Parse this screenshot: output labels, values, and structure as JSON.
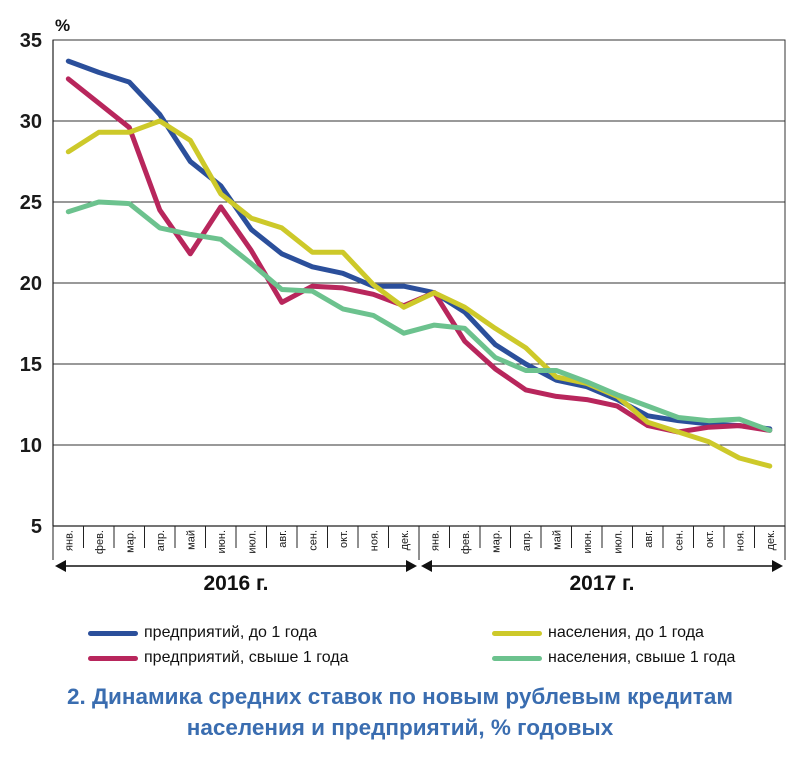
{
  "chart_data": {
    "type": "line",
    "unit_label": "%",
    "ylim": [
      5,
      35
    ],
    "yticks": [
      5,
      10,
      15,
      20,
      25,
      30,
      35
    ],
    "grid": true,
    "categories": [
      "янв.",
      "фев.",
      "мар.",
      "апр.",
      "май",
      "июн.",
      "июл.",
      "авг.",
      "сен.",
      "окт.",
      "ноя.",
      "дек.",
      "янв.",
      "фев.",
      "мар.",
      "апр.",
      "май",
      "июн.",
      "июл.",
      "авг.",
      "сен.",
      "окт.",
      "ноя.",
      "дек."
    ],
    "year_groups": [
      {
        "label": "2016 г.",
        "from": 0,
        "to": 11
      },
      {
        "label": "2017 г.",
        "from": 12,
        "to": 23
      }
    ],
    "series": [
      {
        "name": "предприятий, до 1 года",
        "color": "#2b4f9b",
        "values": [
          33.7,
          33.0,
          32.4,
          30.4,
          27.5,
          26.0,
          23.3,
          21.8,
          21.0,
          20.6,
          19.8,
          19.8,
          19.4,
          18.2,
          16.2,
          15.0,
          14.0,
          13.6,
          12.8,
          11.8,
          11.5,
          11.3,
          11.2,
          11.0
        ]
      },
      {
        "name": "предприятий, свыше 1 года",
        "color": "#b8265c",
        "values": [
          32.6,
          31.1,
          29.6,
          24.5,
          21.8,
          24.7,
          22.0,
          18.8,
          19.8,
          19.7,
          19.3,
          18.6,
          19.4,
          16.4,
          14.7,
          13.4,
          13.0,
          12.8,
          12.4,
          11.2,
          10.8,
          11.1,
          11.2,
          10.9
        ]
      },
      {
        "name": "населения, до 1 года",
        "color": "#cdc92a",
        "values": [
          28.1,
          29.3,
          29.3,
          30.0,
          28.8,
          25.5,
          24.0,
          23.4,
          21.9,
          21.9,
          19.9,
          18.5,
          19.4,
          18.5,
          17.2,
          16.0,
          14.2,
          13.8,
          13.0,
          11.4,
          10.8,
          10.2,
          9.2,
          8.7
        ]
      },
      {
        "name": "населения, свыше 1 года",
        "color": "#6cc28e",
        "values": [
          24.4,
          25.0,
          24.9,
          23.4,
          23.0,
          22.7,
          21.2,
          19.6,
          19.5,
          18.4,
          18.0,
          16.9,
          17.4,
          17.2,
          15.4,
          14.6,
          14.6,
          13.9,
          13.1,
          12.4,
          11.7,
          11.5,
          11.6,
          10.9
        ]
      }
    ]
  },
  "legend": {
    "items": [
      {
        "label": "предприятий, до 1 года",
        "color": "#2b4f9b"
      },
      {
        "label": "населения, до 1 года",
        "color": "#cdc92a"
      },
      {
        "label": "предприятий, свыше 1 года",
        "color": "#b8265c"
      },
      {
        "label": "населения, свыше 1 года",
        "color": "#6cc28e"
      }
    ]
  },
  "caption": {
    "line1": "2. Динамика средних ставок по новым рублевым кредитам",
    "line2": "населения и предприятий, % годовых"
  }
}
